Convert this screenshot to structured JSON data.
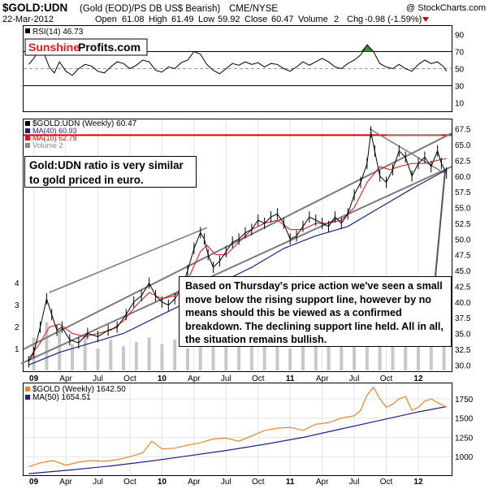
{
  "header": {
    "symbol": "$GOLD:UDN",
    "description": "(Gold (EOD)/PS DB US$ Bearish)",
    "exchange": "CME/NYSE",
    "watermark": "@ StockCharts.com",
    "date": "22-Mar-2012",
    "open_label": "Open",
    "open": "61.08",
    "high_label": "High",
    "high": "61.49",
    "low_label": "Low",
    "low": "59.92",
    "close_label": "Close",
    "close": "60.47",
    "volume_label": "Volume",
    "volume": "2",
    "chg_label": "Chg",
    "chg": "-0.98 (-1.59%)"
  },
  "logo": {
    "part1": "Sunshine",
    "part2": "Profits.com"
  },
  "callouts": {
    "left": "Gold:UDN ratio is very similar to gold priced in euro.",
    "right": "Based on Thursday's price action we've seen a small move below the rising support line, however by no means should this be viewed as a confirmed breakdown. The declining support line held. All in all, the situation remains bullish."
  },
  "colors": {
    "price": "#000000",
    "ma40": "#1f1f8f",
    "ma10": "#dd1111",
    "resistance": "#dd0000",
    "trend": "#7a7a7a",
    "volume": "#c8c8c8",
    "gold": "#e8852a",
    "gold_ma": "#1f1f8f",
    "rsi": "#000000",
    "rsi_fill": "#3a8a3a"
  },
  "chart_data": [
    {
      "type": "line",
      "panel": "rsi",
      "legend": [
        {
          "text": "RSI(14) 46.73"
        }
      ],
      "yticks": [
        "90",
        "70",
        "50",
        "30",
        "10"
      ],
      "ylim": [
        0,
        100
      ],
      "series": [
        {
          "name": "RSI(14)",
          "x": [
            2008.96,
            2009.0,
            2009.04,
            2009.08,
            2009.12,
            2009.16,
            2009.2,
            2009.25,
            2009.3,
            2009.35,
            2009.4,
            2009.45,
            2009.5,
            2009.55,
            2009.6,
            2009.65,
            2009.7,
            2009.75,
            2009.8,
            2009.85,
            2009.9,
            2009.95,
            2010.0,
            2010.05,
            2010.1,
            2010.15,
            2010.2,
            2010.25,
            2010.3,
            2010.35,
            2010.4,
            2010.45,
            2010.5,
            2010.55,
            2010.6,
            2010.65,
            2010.7,
            2010.75,
            2010.8,
            2010.85,
            2010.9,
            2010.95,
            2011.0,
            2011.05,
            2011.1,
            2011.15,
            2011.2,
            2011.25,
            2011.3,
            2011.35,
            2011.4,
            2011.45,
            2011.5,
            2011.55,
            2011.6,
            2011.65,
            2011.7,
            2011.75,
            2011.8,
            2011.85,
            2011.9,
            2011.95,
            2012.0,
            2012.05,
            2012.1,
            2012.15,
            2012.2,
            2012.22
          ],
          "values": [
            55,
            62,
            72,
            68,
            52,
            45,
            58,
            47,
            42,
            50,
            55,
            53,
            47,
            45,
            52,
            58,
            56,
            50,
            54,
            60,
            58,
            48,
            46,
            52,
            50,
            57,
            60,
            70,
            67,
            55,
            48,
            44,
            50,
            56,
            54,
            58,
            55,
            57,
            52,
            56,
            55,
            50,
            47,
            52,
            58,
            54,
            58,
            62,
            58,
            52,
            50,
            56,
            60,
            66,
            78,
            70,
            56,
            52,
            50,
            55,
            50,
            47,
            55,
            60,
            56,
            58,
            52,
            47
          ]
        }
      ]
    },
    {
      "type": "line",
      "panel": "price",
      "legend": [
        {
          "text": "$GOLD:UDN (Weekly) 60.47"
        },
        {
          "text": "MA(40) 60.93"
        },
        {
          "text": "MA(10) 62.79"
        },
        {
          "text": "Volume 2"
        }
      ],
      "yticks": [
        "67.5",
        "65.0",
        "62.5",
        "60.0",
        "57.5",
        "55.0",
        "52.5",
        "50.0",
        "47.5",
        "45.0",
        "42.5",
        "40.0",
        "37.5",
        "35.0",
        "32.5",
        "30.0"
      ],
      "ylim": [
        29,
        69
      ],
      "volume_ticks": [
        "4",
        "3",
        "2",
        "1"
      ],
      "xticks": [
        "09",
        "Apr",
        "Jul",
        "Oct",
        "10",
        "Apr",
        "Jul",
        "Oct",
        "11",
        "Apr",
        "Jul",
        "Oct",
        "12"
      ],
      "series": [
        {
          "name": "$GOLD:UDN",
          "x": [
            2008.96,
            2009.0,
            2009.05,
            2009.1,
            2009.14,
            2009.18,
            2009.22,
            2009.28,
            2009.35,
            2009.42,
            2009.5,
            2009.58,
            2009.65,
            2009.72,
            2009.78,
            2009.84,
            2009.9,
            2009.95,
            2010.0,
            2010.05,
            2010.1,
            2010.15,
            2010.2,
            2010.25,
            2010.3,
            2010.33,
            2010.36,
            2010.4,
            2010.45,
            2010.5,
            2010.55,
            2010.6,
            2010.65,
            2010.7,
            2010.75,
            2010.8,
            2010.85,
            2010.9,
            2010.95,
            2011.0,
            2011.05,
            2011.1,
            2011.15,
            2011.2,
            2011.25,
            2011.3,
            2011.35,
            2011.4,
            2011.45,
            2011.5,
            2011.55,
            2011.6,
            2011.63,
            2011.66,
            2011.7,
            2011.75,
            2011.8,
            2011.85,
            2011.9,
            2011.95,
            2012.0,
            2012.05,
            2012.1,
            2012.15,
            2012.18,
            2012.22
          ],
          "values": [
            30.5,
            32,
            36,
            40.5,
            38,
            35.5,
            36,
            34,
            33.5,
            35,
            34.5,
            35.5,
            36,
            38,
            40,
            41,
            43,
            41,
            40,
            39.5,
            40.5,
            42,
            45,
            48.5,
            51,
            50,
            47.5,
            45.5,
            46.5,
            48,
            49.5,
            50,
            51,
            51.5,
            53,
            52.5,
            53.5,
            54,
            52.5,
            50,
            50.5,
            52,
            53.5,
            53,
            52.5,
            52,
            53.5,
            52.5,
            54,
            57,
            59,
            62,
            67,
            64,
            60,
            59,
            61,
            64,
            63,
            60,
            62,
            63,
            61.5,
            64,
            62,
            60.5
          ]
        },
        {
          "name": "MA(40)",
          "x": [
            2008.96,
            2009.2,
            2009.45,
            2009.7,
            2009.95,
            2010.2,
            2010.45,
            2010.7,
            2010.95,
            2011.2,
            2011.45,
            2011.7,
            2011.95,
            2012.22
          ],
          "values": [
            30,
            32,
            33.5,
            35,
            37.5,
            40,
            43,
            45.5,
            48.5,
            50.5,
            52,
            55,
            58,
            61
          ]
        },
        {
          "name": "MA(10)",
          "x": [
            2008.96,
            2009.05,
            2009.12,
            2009.2,
            2009.3,
            2009.4,
            2009.5,
            2009.6,
            2009.7,
            2009.8,
            2009.9,
            2010.0,
            2010.1,
            2010.2,
            2010.3,
            2010.35,
            2010.42,
            2010.5,
            2010.6,
            2010.7,
            2010.8,
            2010.9,
            2011.0,
            2011.1,
            2011.2,
            2011.3,
            2011.4,
            2011.5,
            2011.6,
            2011.7,
            2011.78,
            2011.85,
            2011.95,
            2012.05,
            2012.15,
            2012.22
          ],
          "values": [
            31,
            33.5,
            36,
            36.5,
            35,
            34.5,
            35,
            35.5,
            37,
            39.5,
            41.5,
            40.5,
            41,
            43.5,
            48,
            49,
            47.5,
            47.5,
            49.5,
            51.5,
            52.5,
            53,
            51.5,
            51.5,
            52.5,
            52.5,
            53,
            55,
            59,
            61.5,
            61,
            61.5,
            62,
            62,
            62.5,
            62.8
          ]
        },
        {
          "name": "Volume",
          "x": [
            2009.0,
            2009.1,
            2009.2,
            2009.3,
            2009.4,
            2009.5,
            2009.6,
            2009.7,
            2009.8,
            2009.9,
            2010.0,
            2010.1,
            2010.2,
            2010.3,
            2010.4,
            2010.5,
            2010.6,
            2010.7,
            2010.8,
            2010.9,
            2011.0,
            2011.1,
            2011.2,
            2011.3,
            2011.4,
            2011.5,
            2011.6,
            2011.7,
            2011.8,
            2011.9,
            2012.0,
            2012.1,
            2012.2
          ],
          "values": [
            1.5,
            2.2,
            1.8,
            1.2,
            1.6,
            1.0,
            1.4,
            1.1,
            1.3,
            1.5,
            1.2,
            1.4,
            1.0,
            1.6,
            1.3,
            1.1,
            1.5,
            1.2,
            1.4,
            1.3,
            1.0,
            1.5,
            1.2,
            1.1,
            1.4,
            1.6,
            1.3,
            1.5,
            1.2,
            1.4,
            1.3,
            1.5,
            1.2
          ]
        }
      ],
      "resistance_level": 66.5
    },
    {
      "type": "line",
      "panel": "gold",
      "legend": [
        {
          "text": "$GOLD (Weekly) 1642.50"
        },
        {
          "text": "MA(50) 1654.51"
        }
      ],
      "yticks": [
        "1750",
        "1500",
        "1250",
        "1000"
      ],
      "ylim": [
        760,
        1950
      ],
      "xticks": [
        "09",
        "Apr",
        "Jul",
        "Oct",
        "10",
        "Apr",
        "Jul",
        "Oct",
        "11",
        "Apr",
        "Jul",
        "Oct",
        "12"
      ],
      "series": [
        {
          "name": "$GOLD",
          "x": [
            2008.96,
            2009.05,
            2009.15,
            2009.25,
            2009.35,
            2009.45,
            2009.55,
            2009.65,
            2009.75,
            2009.85,
            2009.92,
            2010.0,
            2010.1,
            2010.2,
            2010.3,
            2010.4,
            2010.5,
            2010.6,
            2010.7,
            2010.8,
            2010.9,
            2011.0,
            2011.1,
            2011.2,
            2011.3,
            2011.4,
            2011.5,
            2011.55,
            2011.6,
            2011.65,
            2011.7,
            2011.75,
            2011.8,
            2011.85,
            2011.9,
            2011.95,
            2012.0,
            2012.05,
            2012.1,
            2012.15,
            2012.2,
            2012.22
          ],
          "values": [
            870,
            920,
            950,
            890,
            930,
            950,
            940,
            960,
            1000,
            1050,
            1200,
            1100,
            1110,
            1150,
            1180,
            1230,
            1240,
            1200,
            1270,
            1340,
            1370,
            1380,
            1340,
            1420,
            1440,
            1500,
            1530,
            1600,
            1800,
            1900,
            1750,
            1640,
            1680,
            1750,
            1780,
            1600,
            1640,
            1720,
            1750,
            1700,
            1660,
            1642
          ]
        },
        {
          "name": "MA(50)",
          "x": [
            2008.96,
            2009.3,
            2009.6,
            2009.9,
            2010.2,
            2010.5,
            2010.8,
            2011.1,
            2011.4,
            2011.7,
            2012.0,
            2012.22
          ],
          "values": [
            780,
            830,
            880,
            940,
            1010,
            1080,
            1160,
            1250,
            1360,
            1470,
            1580,
            1650
          ]
        }
      ]
    }
  ]
}
